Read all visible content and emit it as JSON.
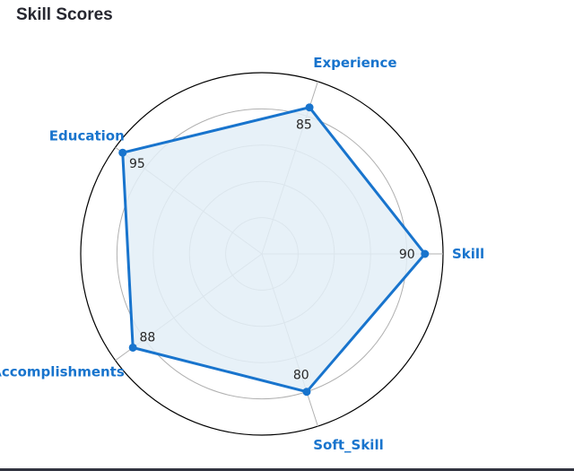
{
  "page": {
    "title": "Skill Scores"
  },
  "colors": {
    "accent": "#1874cd",
    "fill": "#e3eef7",
    "grid": "#b0b0b0",
    "frame": "#000000"
  },
  "chart_data": {
    "type": "radar",
    "title": "Skill Scores",
    "categories": [
      "Skill",
      "Experience",
      "Education",
      "Accomplishments",
      "Soft_Skill"
    ],
    "values": [
      90,
      85,
      95,
      88,
      80
    ],
    "rlim": [
      0,
      100
    ],
    "grid": true,
    "data_labels_shown": true
  }
}
